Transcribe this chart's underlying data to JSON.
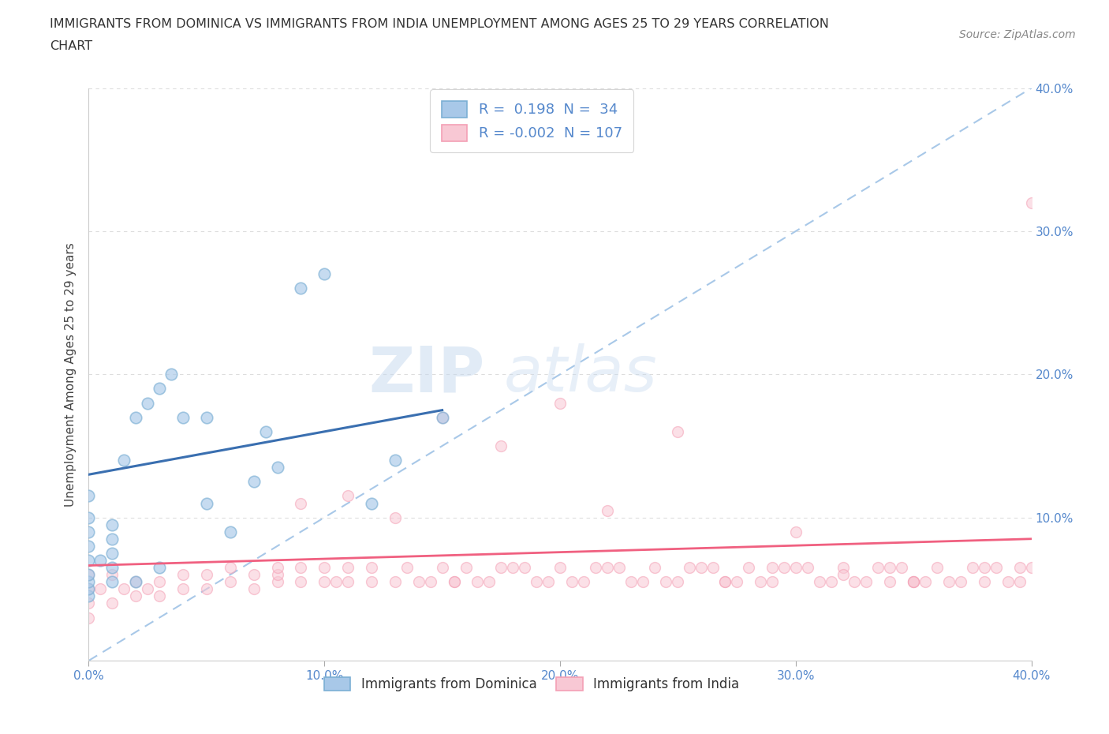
{
  "title_line1": "IMMIGRANTS FROM DOMINICA VS IMMIGRANTS FROM INDIA UNEMPLOYMENT AMONG AGES 25 TO 29 YEARS CORRELATION",
  "title_line2": "CHART",
  "source_text": "Source: ZipAtlas.com",
  "ylabel": "Unemployment Among Ages 25 to 29 years",
  "xlim": [
    0.0,
    0.4
  ],
  "ylim": [
    0.0,
    0.4
  ],
  "xticks": [
    0.0,
    0.1,
    0.2,
    0.3,
    0.4
  ],
  "yticks": [
    0.1,
    0.2,
    0.3,
    0.4
  ],
  "xticklabels": [
    "0.0%",
    "10.0%",
    "20.0%",
    "30.0%",
    "40.0%"
  ],
  "yticklabels_right": [
    "10.0%",
    "20.0%",
    "30.0%",
    "40.0%"
  ],
  "dominica_color": "#7BAFD4",
  "dominica_fill": "#A8C8E8",
  "india_color": "#F4A0B5",
  "india_fill": "#F8C8D4",
  "dominica_trend_color": "#3A6FB0",
  "india_trend_color": "#F06080",
  "ref_line_color": "#A8C8E8",
  "R_dominica": 0.198,
  "N_dominica": 34,
  "R_india": -0.002,
  "N_india": 107,
  "background_color": "#FFFFFF",
  "grid_color": "#DDDDDD",
  "tick_color": "#5588CC",
  "watermark_zip": "ZIP",
  "watermark_atlas": "atlas",
  "legend_labels": [
    "Immigrants from Dominica",
    "Immigrants from India"
  ],
  "dominica_x": [
    0.0,
    0.0,
    0.0,
    0.0,
    0.0,
    0.0,
    0.0,
    0.0,
    0.0,
    0.005,
    0.01,
    0.01,
    0.01,
    0.01,
    0.01,
    0.015,
    0.02,
    0.02,
    0.025,
    0.03,
    0.03,
    0.035,
    0.04,
    0.05,
    0.05,
    0.06,
    0.07,
    0.075,
    0.08,
    0.09,
    0.1,
    0.12,
    0.13,
    0.15
  ],
  "dominica_y": [
    0.045,
    0.05,
    0.055,
    0.06,
    0.07,
    0.08,
    0.09,
    0.1,
    0.115,
    0.07,
    0.055,
    0.065,
    0.075,
    0.085,
    0.095,
    0.14,
    0.055,
    0.17,
    0.18,
    0.065,
    0.19,
    0.2,
    0.17,
    0.11,
    0.17,
    0.09,
    0.125,
    0.16,
    0.135,
    0.26,
    0.27,
    0.11,
    0.14,
    0.17
  ],
  "india_x": [
    0.0,
    0.0,
    0.0,
    0.0,
    0.005,
    0.01,
    0.01,
    0.015,
    0.02,
    0.02,
    0.025,
    0.03,
    0.03,
    0.04,
    0.04,
    0.05,
    0.05,
    0.06,
    0.07,
    0.07,
    0.08,
    0.08,
    0.09,
    0.09,
    0.1,
    0.1,
    0.11,
    0.11,
    0.12,
    0.12,
    0.13,
    0.14,
    0.15,
    0.155,
    0.16,
    0.17,
    0.18,
    0.19,
    0.2,
    0.21,
    0.22,
    0.23,
    0.24,
    0.25,
    0.26,
    0.27,
    0.28,
    0.29,
    0.3,
    0.31,
    0.32,
    0.33,
    0.34,
    0.35,
    0.36,
    0.37,
    0.38,
    0.39,
    0.4,
    0.15,
    0.2,
    0.25,
    0.3,
    0.35,
    0.175,
    0.22,
    0.27,
    0.32,
    0.09,
    0.11,
    0.13,
    0.145,
    0.165,
    0.185,
    0.205,
    0.225,
    0.245,
    0.265,
    0.285,
    0.305,
    0.325,
    0.345,
    0.365,
    0.385,
    0.06,
    0.08,
    0.105,
    0.135,
    0.155,
    0.175,
    0.195,
    0.215,
    0.235,
    0.255,
    0.275,
    0.295,
    0.315,
    0.335,
    0.355,
    0.375,
    0.395,
    0.38,
    0.395,
    0.34,
    0.29,
    0.35,
    0.4
  ],
  "india_y": [
    0.03,
    0.04,
    0.05,
    0.06,
    0.05,
    0.04,
    0.06,
    0.05,
    0.045,
    0.055,
    0.05,
    0.045,
    0.055,
    0.05,
    0.06,
    0.05,
    0.06,
    0.055,
    0.05,
    0.06,
    0.055,
    0.06,
    0.055,
    0.065,
    0.055,
    0.065,
    0.055,
    0.065,
    0.055,
    0.065,
    0.055,
    0.055,
    0.065,
    0.055,
    0.065,
    0.055,
    0.065,
    0.055,
    0.065,
    0.055,
    0.065,
    0.055,
    0.065,
    0.055,
    0.065,
    0.055,
    0.065,
    0.055,
    0.065,
    0.055,
    0.065,
    0.055,
    0.065,
    0.055,
    0.065,
    0.055,
    0.065,
    0.055,
    0.065,
    0.17,
    0.18,
    0.16,
    0.09,
    0.055,
    0.15,
    0.105,
    0.055,
    0.06,
    0.11,
    0.115,
    0.1,
    0.055,
    0.055,
    0.065,
    0.055,
    0.065,
    0.055,
    0.065,
    0.055,
    0.065,
    0.055,
    0.065,
    0.055,
    0.065,
    0.065,
    0.065,
    0.055,
    0.065,
    0.055,
    0.065,
    0.055,
    0.065,
    0.055,
    0.065,
    0.055,
    0.065,
    0.055,
    0.065,
    0.055,
    0.065,
    0.055,
    0.055,
    0.065,
    0.055,
    0.065,
    0.055,
    0.32
  ]
}
